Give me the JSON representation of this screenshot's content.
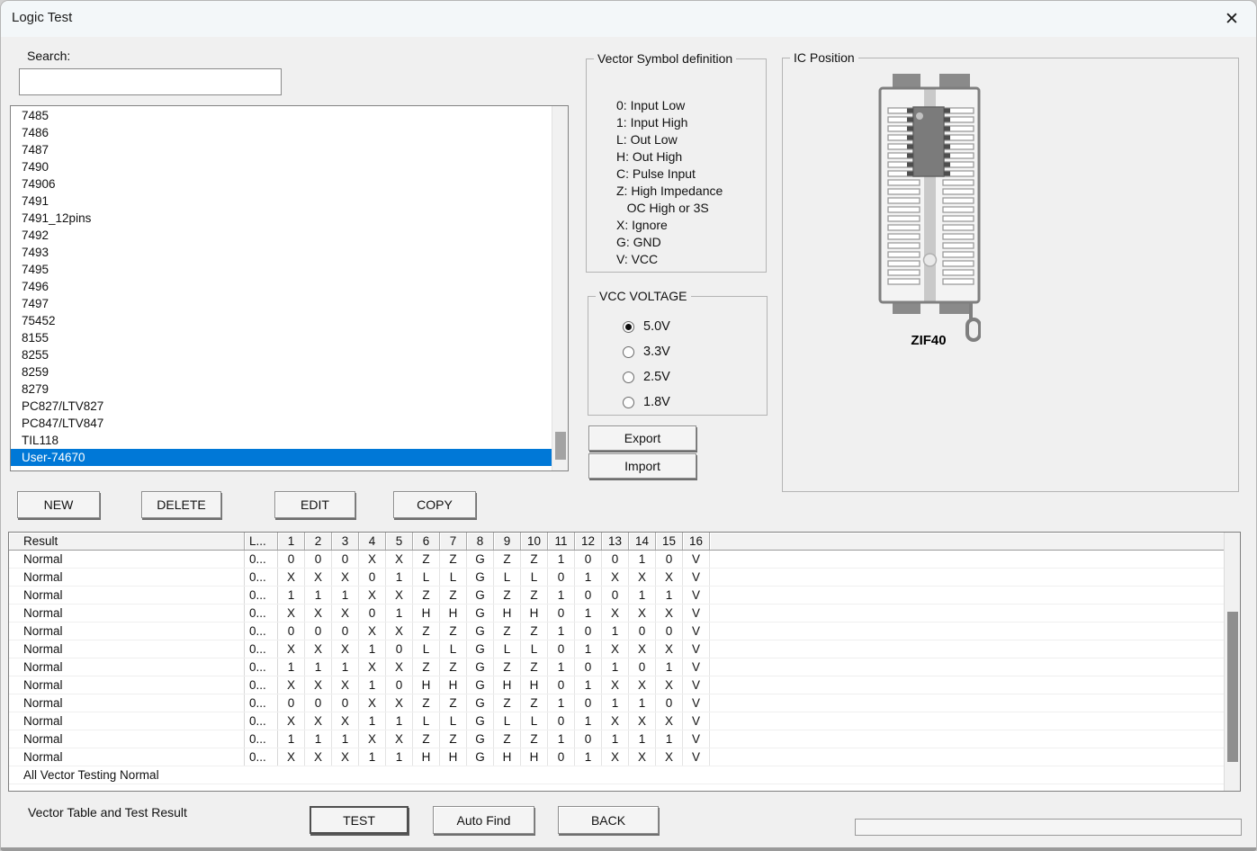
{
  "window": {
    "title": "Logic Test",
    "close_icon": "✕"
  },
  "search": {
    "label": "Search:",
    "value": ""
  },
  "device_list": {
    "items": [
      "7485",
      "7486",
      "7487",
      "7490",
      "74906",
      "7491",
      "7491_12pins",
      "7492",
      "7493",
      "7495",
      "7496",
      "7497",
      "75452",
      "8155",
      "8255",
      "8259",
      "8279",
      "PC827/LTV827",
      "PC847/LTV847",
      "TIL118",
      "User-74670"
    ],
    "selected": "User-74670"
  },
  "vector_symbols": {
    "title": "Vector Symbol definition",
    "lines": [
      "0: Input Low",
      "1: Input High",
      "L: Out Low",
      "H: Out High",
      "C: Pulse Input",
      "Z: High Impedance",
      "   OC High or 3S",
      "X: Ignore",
      "G: GND",
      "V: VCC"
    ]
  },
  "vcc_voltage": {
    "title": "VCC VOLTAGE",
    "options": [
      {
        "label": "5.0V",
        "selected": true
      },
      {
        "label": "3.3V",
        "selected": false
      },
      {
        "label": "2.5V",
        "selected": false
      },
      {
        "label": "1.8V",
        "selected": false
      }
    ]
  },
  "side_buttons": {
    "export": "Export",
    "import": "Import"
  },
  "ic_position": {
    "title": "IC Position",
    "socket_label": "ZIF40"
  },
  "list_buttons": {
    "new": "NEW",
    "delete": "DELETE",
    "edit": "EDIT",
    "copy": "COPY"
  },
  "vector_table": {
    "columns": [
      "Result",
      "L...",
      "1",
      "2",
      "3",
      "4",
      "5",
      "6",
      "7",
      "8",
      "9",
      "10",
      "11",
      "12",
      "13",
      "14",
      "15",
      "16"
    ],
    "rows": [
      {
        "result": "Normal",
        "l": "0...",
        "values": [
          "0",
          "0",
          "0",
          "X",
          "X",
          "Z",
          "Z",
          "G",
          "Z",
          "Z",
          "1",
          "0",
          "0",
          "1",
          "0",
          "V"
        ]
      },
      {
        "result": "Normal",
        "l": "0...",
        "values": [
          "X",
          "X",
          "X",
          "0",
          "1",
          "L",
          "L",
          "G",
          "L",
          "L",
          "0",
          "1",
          "X",
          "X",
          "X",
          "V"
        ]
      },
      {
        "result": "Normal",
        "l": "0...",
        "values": [
          "1",
          "1",
          "1",
          "X",
          "X",
          "Z",
          "Z",
          "G",
          "Z",
          "Z",
          "1",
          "0",
          "0",
          "1",
          "1",
          "V"
        ]
      },
      {
        "result": "Normal",
        "l": "0...",
        "values": [
          "X",
          "X",
          "X",
          "0",
          "1",
          "H",
          "H",
          "G",
          "H",
          "H",
          "0",
          "1",
          "X",
          "X",
          "X",
          "V"
        ]
      },
      {
        "result": "Normal",
        "l": "0...",
        "values": [
          "0",
          "0",
          "0",
          "X",
          "X",
          "Z",
          "Z",
          "G",
          "Z",
          "Z",
          "1",
          "0",
          "1",
          "0",
          "0",
          "V"
        ]
      },
      {
        "result": "Normal",
        "l": "0...",
        "values": [
          "X",
          "X",
          "X",
          "1",
          "0",
          "L",
          "L",
          "G",
          "L",
          "L",
          "0",
          "1",
          "X",
          "X",
          "X",
          "V"
        ]
      },
      {
        "result": "Normal",
        "l": "0...",
        "values": [
          "1",
          "1",
          "1",
          "X",
          "X",
          "Z",
          "Z",
          "G",
          "Z",
          "Z",
          "1",
          "0",
          "1",
          "0",
          "1",
          "V"
        ]
      },
      {
        "result": "Normal",
        "l": "0...",
        "values": [
          "X",
          "X",
          "X",
          "1",
          "0",
          "H",
          "H",
          "G",
          "H",
          "H",
          "0",
          "1",
          "X",
          "X",
          "X",
          "V"
        ]
      },
      {
        "result": "Normal",
        "l": "0...",
        "values": [
          "0",
          "0",
          "0",
          "X",
          "X",
          "Z",
          "Z",
          "G",
          "Z",
          "Z",
          "1",
          "0",
          "1",
          "1",
          "0",
          "V"
        ]
      },
      {
        "result": "Normal",
        "l": "0...",
        "values": [
          "X",
          "X",
          "X",
          "1",
          "1",
          "L",
          "L",
          "G",
          "L",
          "L",
          "0",
          "1",
          "X",
          "X",
          "X",
          "V"
        ]
      },
      {
        "result": "Normal",
        "l": "0...",
        "values": [
          "1",
          "1",
          "1",
          "X",
          "X",
          "Z",
          "Z",
          "G",
          "Z",
          "Z",
          "1",
          "0",
          "1",
          "1",
          "1",
          "V"
        ]
      },
      {
        "result": "Normal",
        "l": "0...",
        "values": [
          "X",
          "X",
          "X",
          "1",
          "1",
          "H",
          "H",
          "G",
          "H",
          "H",
          "0",
          "1",
          "X",
          "X",
          "X",
          "V"
        ]
      }
    ],
    "summary": "All Vector Testing Normal"
  },
  "footer": {
    "caption": "Vector Table and Test Result",
    "test": "TEST",
    "auto_find": "Auto Find",
    "back": "BACK"
  },
  "colors": {
    "selection": "#0078d7",
    "chip": "#7b7b7b",
    "socket_outline": "#7f7f7f"
  }
}
